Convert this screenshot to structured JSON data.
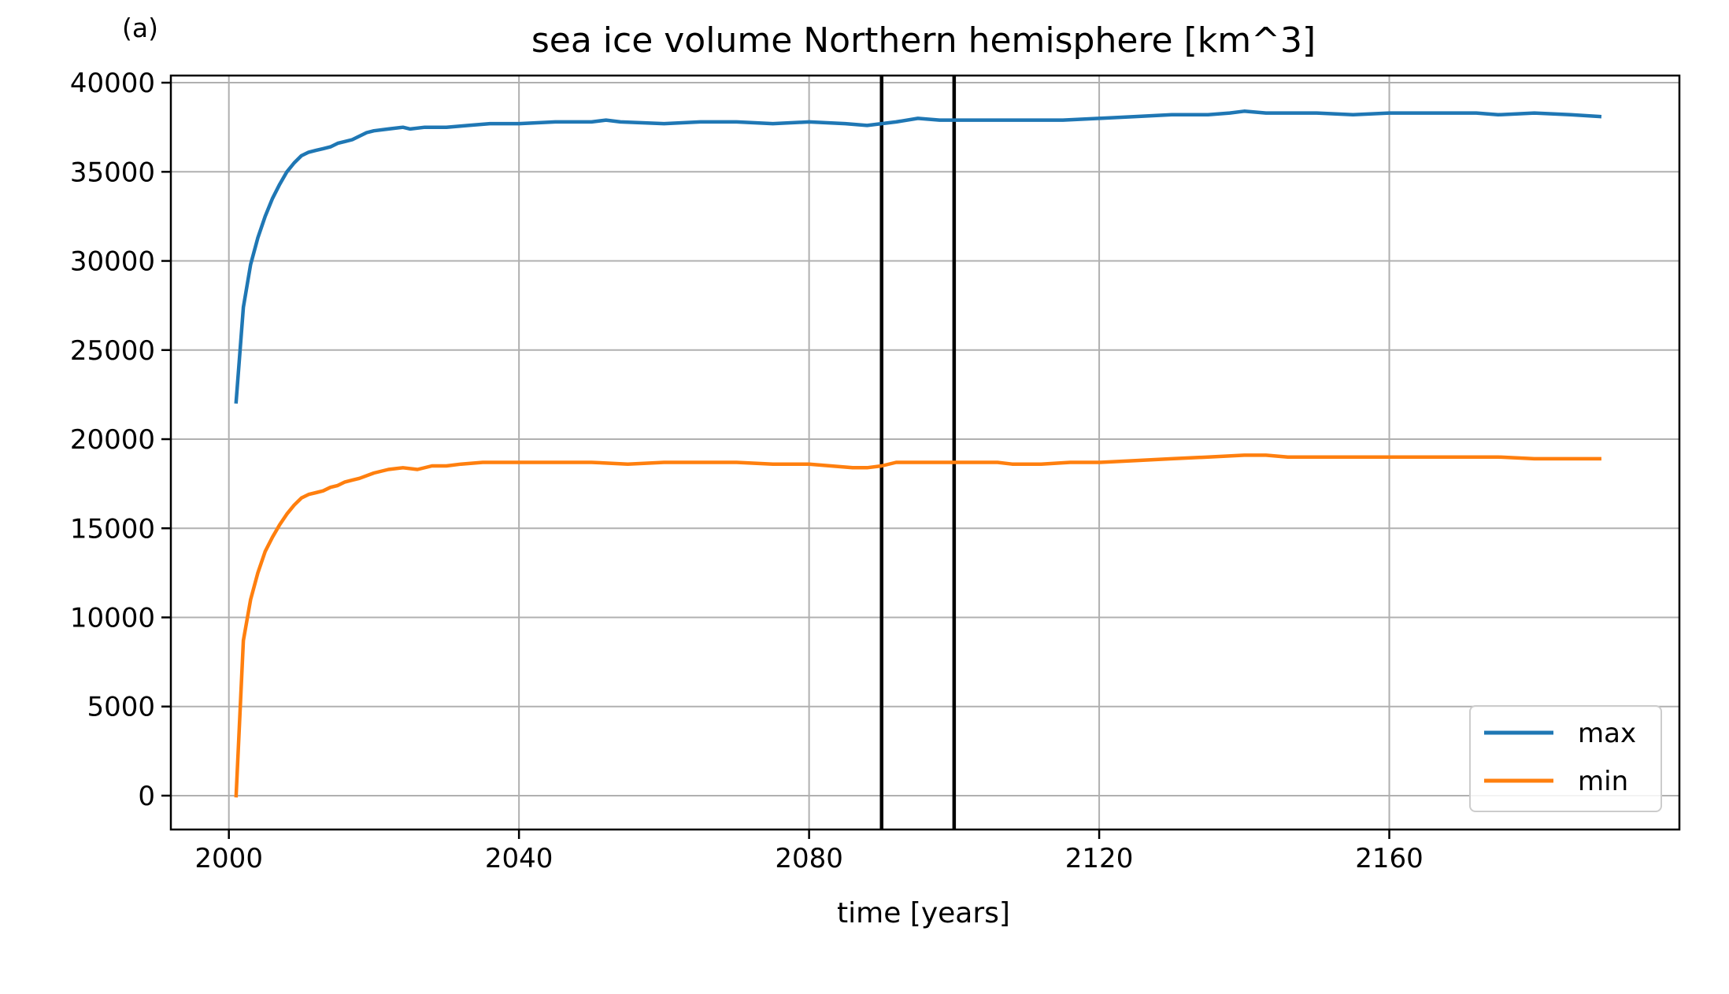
{
  "panel_label": "(a)",
  "colors": {
    "max": "#1f77b4",
    "min": "#ff7f0e",
    "grid": "#b0b0b0",
    "vline": "#000000"
  },
  "chart_data": {
    "type": "line",
    "title": "sea ice volume Northern hemisphere [km^3]",
    "xlabel": "time [years]",
    "ylabel": "",
    "xlim": [
      1992,
      2200
    ],
    "ylim": [
      -1900,
      40400
    ],
    "xticks": [
      2000,
      2040,
      2080,
      2120,
      2160
    ],
    "yticks": [
      0,
      5000,
      10000,
      15000,
      20000,
      25000,
      30000,
      35000,
      40000
    ],
    "grid": true,
    "legend_position": "bottom-right",
    "vertical_lines": [
      2090,
      2100
    ],
    "series": [
      {
        "name": "max",
        "x": [
          2001,
          2002,
          2003,
          2004,
          2005,
          2006,
          2007,
          2008,
          2009,
          2010,
          2011,
          2012,
          2013,
          2014,
          2015,
          2016,
          2017,
          2018,
          2019,
          2020,
          2022,
          2024,
          2025,
          2027,
          2030,
          2033,
          2036,
          2040,
          2045,
          2050,
          2052,
          2054,
          2060,
          2065,
          2070,
          2075,
          2080,
          2085,
          2088,
          2090,
          2092,
          2095,
          2098,
          2100,
          2103,
          2106,
          2110,
          2115,
          2120,
          2125,
          2130,
          2135,
          2138,
          2140,
          2143,
          2146,
          2150,
          2155,
          2160,
          2165,
          2170,
          2172,
          2175,
          2180,
          2185,
          2189
        ],
        "y": [
          22100,
          27400,
          29800,
          31300,
          32500,
          33500,
          34300,
          35000,
          35500,
          35900,
          36100,
          36200,
          36300,
          36400,
          36600,
          36700,
          36800,
          37000,
          37200,
          37300,
          37400,
          37500,
          37400,
          37500,
          37500,
          37600,
          37700,
          37700,
          37800,
          37800,
          37900,
          37800,
          37700,
          37800,
          37800,
          37700,
          37800,
          37700,
          37600,
          37700,
          37800,
          38000,
          37900,
          37900,
          37900,
          37900,
          37900,
          37900,
          38000,
          38100,
          38200,
          38200,
          38300,
          38400,
          38300,
          38300,
          38300,
          38200,
          38300,
          38300,
          38300,
          38300,
          38200,
          38300,
          38200,
          38100
        ]
      },
      {
        "name": "min",
        "x": [
          2001,
          2002,
          2003,
          2004,
          2005,
          2006,
          2007,
          2008,
          2009,
          2010,
          2011,
          2012,
          2013,
          2014,
          2015,
          2016,
          2017,
          2018,
          2020,
          2022,
          2024,
          2026,
          2028,
          2030,
          2032,
          2035,
          2040,
          2045,
          2050,
          2055,
          2060,
          2065,
          2070,
          2075,
          2080,
          2083,
          2086,
          2088,
          2090,
          2092,
          2095,
          2098,
          2100,
          2103,
          2106,
          2108,
          2112,
          2116,
          2120,
          2125,
          2130,
          2135,
          2140,
          2143,
          2146,
          2150,
          2155,
          2160,
          2165,
          2170,
          2175,
          2180,
          2185,
          2189
        ],
        "y": [
          0,
          8700,
          11000,
          12500,
          13700,
          14500,
          15200,
          15800,
          16300,
          16700,
          16900,
          17000,
          17100,
          17300,
          17400,
          17600,
          17700,
          17800,
          18100,
          18300,
          18400,
          18300,
          18500,
          18500,
          18600,
          18700,
          18700,
          18700,
          18700,
          18600,
          18700,
          18700,
          18700,
          18600,
          18600,
          18500,
          18400,
          18400,
          18500,
          18700,
          18700,
          18700,
          18700,
          18700,
          18700,
          18600,
          18600,
          18700,
          18700,
          18800,
          18900,
          19000,
          19100,
          19100,
          19000,
          19000,
          19000,
          19000,
          19000,
          19000,
          19000,
          18900,
          18900,
          18900
        ]
      }
    ]
  }
}
